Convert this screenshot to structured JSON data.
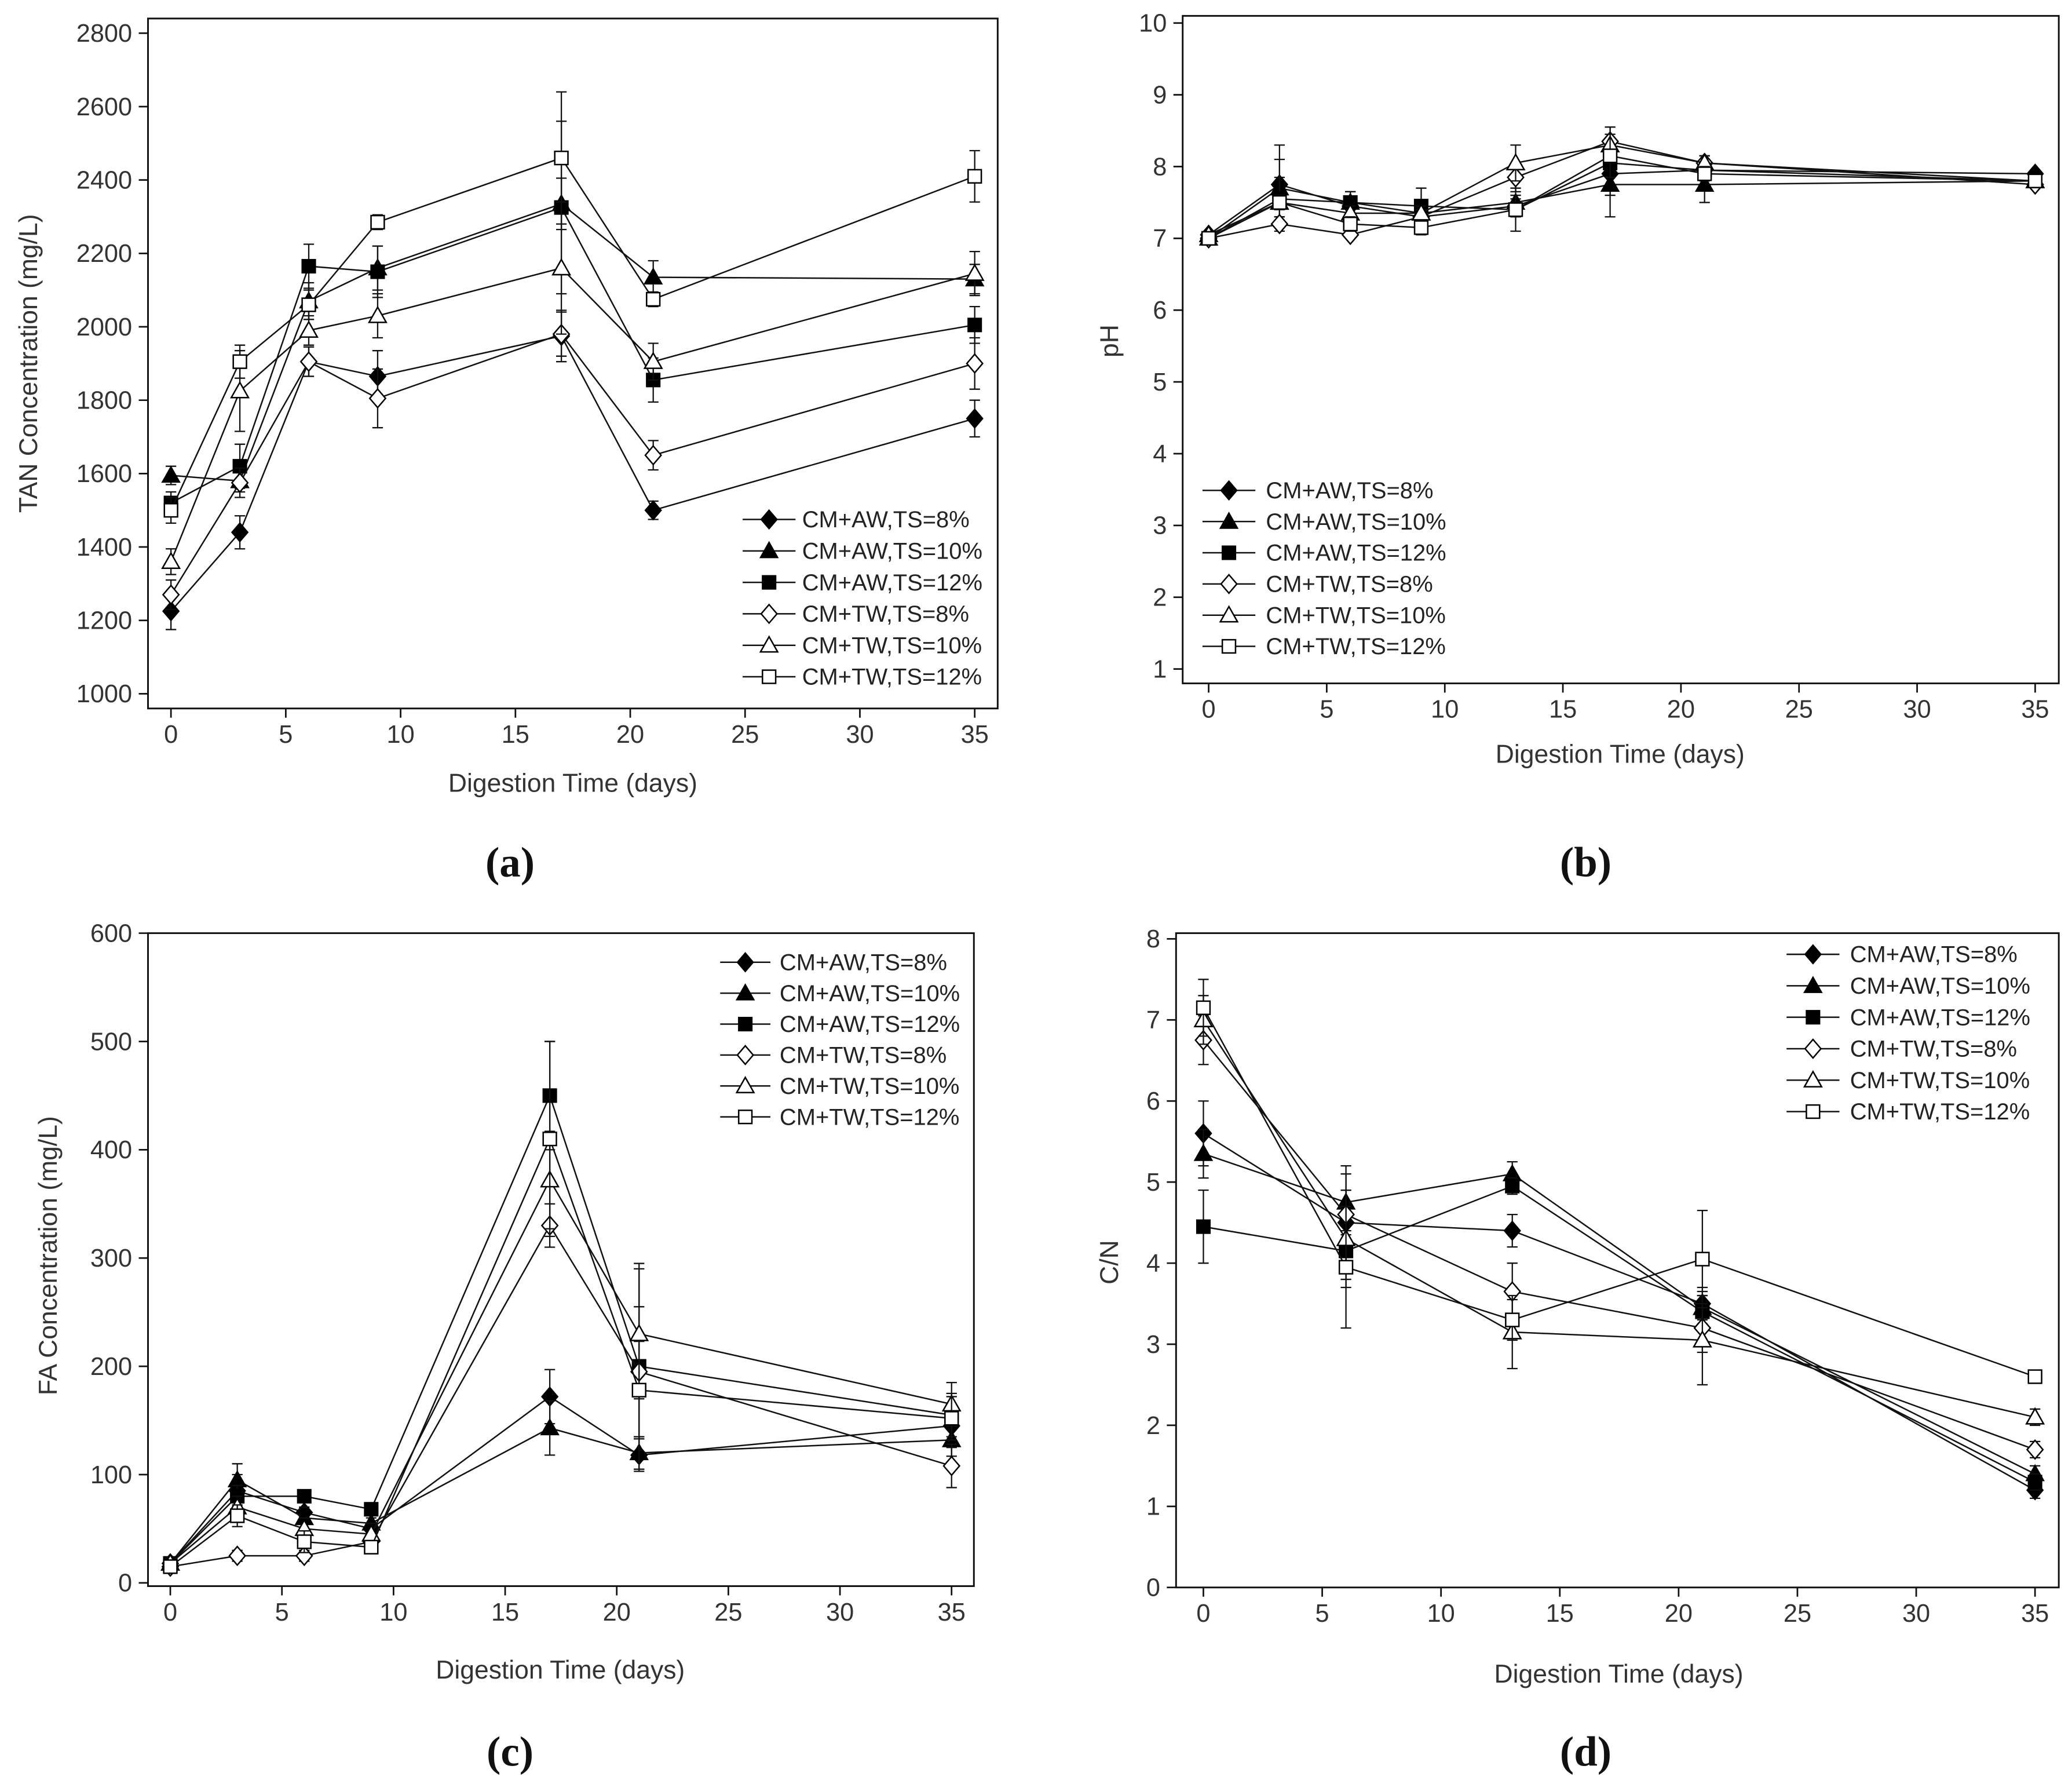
{
  "chart_data": [
    {
      "panel_label": "(a)",
      "type": "line",
      "xlabel": "Digestion Time (days)",
      "ylabel": "TAN Concentration (mg/L)",
      "xlim": [
        -1,
        36
      ],
      "ylim": [
        960,
        2840
      ],
      "xticks": [
        0,
        5,
        10,
        15,
        20,
        25,
        30,
        35
      ],
      "yticks": [
        1000,
        1200,
        1400,
        1600,
        1800,
        2000,
        2200,
        2400,
        2600,
        2800
      ],
      "legend_position": "bottom-right",
      "x": [
        0,
        3,
        6,
        9,
        17,
        21,
        35
      ],
      "series": [
        {
          "name": "CM+AW,TS=8%",
          "marker": "diamond",
          "filled": true,
          "values": [
            1225,
            1440,
            1905,
            1865,
            1975,
            1500,
            1750
          ],
          "errors": [
            50,
            45,
            40,
            70,
            70,
            25,
            50
          ]
        },
        {
          "name": "CM+AW,TS=10%",
          "marker": "triangle",
          "filled": true,
          "values": [
            1595,
            1580,
            2070,
            2160,
            2335,
            2135,
            2130
          ],
          "errors": [
            25,
            30,
            50,
            60,
            70,
            45,
            40
          ]
        },
        {
          "name": "CM+AW,TS=12%",
          "marker": "square",
          "filled": true,
          "values": [
            1520,
            1620,
            2165,
            2150,
            2325,
            1855,
            2005
          ],
          "errors": [
            30,
            60,
            60,
            70,
            235,
            60,
            50
          ]
        },
        {
          "name": "CM+TW,TS=8%",
          "marker": "diamond",
          "filled": false,
          "values": [
            1270,
            1575,
            1905,
            1805,
            1980,
            1650,
            1900
          ],
          "errors": [
            40,
            40,
            40,
            80,
            60,
            40,
            70
          ]
        },
        {
          "name": "CM+TW,TS=10%",
          "marker": "triangle",
          "filled": false,
          "values": [
            1360,
            1825,
            1990,
            2030,
            2160,
            1905,
            2145
          ],
          "errors": [
            35,
            110,
            40,
            60,
            180,
            50,
            60
          ]
        },
        {
          "name": "CM+TW,TS=12%",
          "marker": "square",
          "filled": false,
          "values": [
            1500,
            1905,
            2060,
            2285,
            2460,
            2075,
            2410
          ],
          "errors": [
            35,
            45,
            40,
            20,
            180,
            20,
            70
          ]
        }
      ]
    },
    {
      "panel_label": "(b)",
      "type": "line",
      "xlabel": "Digestion Time (days)",
      "ylabel": "pH",
      "xlim": [
        -1.1,
        36
      ],
      "ylim": [
        0.8,
        10.1
      ],
      "xticks": [
        0,
        5,
        10,
        15,
        20,
        25,
        30,
        35
      ],
      "yticks": [
        1,
        2,
        3,
        4,
        5,
        6,
        7,
        8,
        9,
        10
      ],
      "legend_position": "bottom-left",
      "x": [
        0,
        3,
        6,
        9,
        13,
        17,
        21,
        35
      ],
      "series": [
        {
          "name": "CM+AW,TS=8%",
          "marker": "diamond",
          "filled": true,
          "values": [
            7.05,
            7.75,
            7.45,
            7.3,
            7.45,
            7.9,
            7.95,
            7.9
          ],
          "errors": [
            0.05,
            0.55,
            0.1,
            0.1,
            0.1,
            0.3,
            0.1,
            0.05
          ]
        },
        {
          "name": "CM+AW,TS=10%",
          "marker": "triangle",
          "filled": true,
          "values": [
            7.0,
            7.7,
            7.5,
            7.35,
            7.5,
            7.75,
            7.75,
            7.8
          ],
          "errors": [
            0.05,
            0.4,
            0.15,
            0.1,
            0.1,
            0.45,
            0.25,
            0.05
          ]
        },
        {
          "name": "CM+AW,TS=12%",
          "marker": "square",
          "filled": true,
          "values": [
            7.0,
            7.55,
            7.5,
            7.45,
            7.4,
            8.05,
            7.95,
            7.8
          ],
          "errors": [
            0.05,
            0.3,
            0.15,
            0.25,
            0.1,
            0.2,
            0.1,
            0.05
          ]
        },
        {
          "name": "CM+TW,TS=8%",
          "marker": "diamond",
          "filled": false,
          "values": [
            7.0,
            7.2,
            7.05,
            7.3,
            7.85,
            8.35,
            8.05,
            7.75
          ],
          "errors": [
            0.05,
            0.1,
            0.05,
            0.1,
            0.2,
            0.2,
            0.1,
            0.05
          ]
        },
        {
          "name": "CM+TW,TS=10%",
          "marker": "triangle",
          "filled": false,
          "values": [
            7.05,
            7.5,
            7.35,
            7.35,
            8.05,
            8.3,
            8.05,
            7.8
          ],
          "errors": [
            0.05,
            0.1,
            0.1,
            0.1,
            0.25,
            0.25,
            0.1,
            0.05
          ]
        },
        {
          "name": "CM+TW,TS=12%",
          "marker": "square",
          "filled": false,
          "values": [
            7.0,
            7.5,
            7.2,
            7.15,
            7.4,
            8.15,
            7.9,
            7.8
          ],
          "errors": [
            0.05,
            0.1,
            0.1,
            0.1,
            0.3,
            0.3,
            0.1,
            0.05
          ]
        }
      ]
    },
    {
      "panel_label": "(c)",
      "type": "line",
      "xlabel": "Digestion Time (days)",
      "ylabel": "FA Concentration (mg/L)",
      "xlim": [
        -1,
        36
      ],
      "ylim": [
        -3,
        600
      ],
      "xticks": [
        0,
        5,
        10,
        15,
        20,
        25,
        30,
        35
      ],
      "yticks": [
        0,
        100,
        200,
        300,
        400,
        500,
        600
      ],
      "legend_position": "top-right",
      "x": [
        0,
        3,
        6,
        9,
        17,
        21,
        35
      ],
      "series": [
        {
          "name": "CM+AW,TS=8%",
          "marker": "diamond",
          "filled": true,
          "values": [
            18,
            85,
            65,
            50,
            172,
            118,
            145
          ],
          "errors": [
            5,
            15,
            10,
            10,
            25,
            15,
            20
          ]
        },
        {
          "name": "CM+AW,TS=10%",
          "marker": "triangle",
          "filled": true,
          "values": [
            18,
            95,
            60,
            55,
            143,
            120,
            132
          ],
          "errors": [
            5,
            15,
            10,
            10,
            25,
            15,
            15
          ]
        },
        {
          "name": "CM+AW,TS=12%",
          "marker": "square",
          "filled": true,
          "values": [
            18,
            80,
            80,
            68,
            450,
            200,
            155
          ],
          "errors": [
            5,
            10,
            5,
            5,
            50,
            95,
            20
          ]
        },
        {
          "name": "CM+TW,TS=8%",
          "marker": "diamond",
          "filled": false,
          "values": [
            15,
            25,
            25,
            38,
            330,
            195,
            108
          ],
          "errors": [
            3,
            5,
            5,
            5,
            20,
            60,
            20
          ]
        },
        {
          "name": "CM+TW,TS=10%",
          "marker": "triangle",
          "filled": false,
          "values": [
            18,
            70,
            50,
            45,
            372,
            230,
            165
          ],
          "errors": [
            5,
            10,
            10,
            10,
            45,
            60,
            20
          ]
        },
        {
          "name": "CM+TW,TS=12%",
          "marker": "square",
          "filled": false,
          "values": [
            15,
            62,
            38,
            33,
            410,
            178,
            152
          ],
          "errors": [
            5,
            10,
            10,
            5,
            90,
            45,
            20
          ]
        }
      ]
    },
    {
      "panel_label": "(d)",
      "type": "line",
      "xlabel": "Digestion Time (days)",
      "ylabel": "C/N",
      "xlim": [
        -1.15,
        36
      ],
      "ylim": [
        0,
        8.07
      ],
      "xticks": [
        0,
        5,
        10,
        15,
        20,
        25,
        30,
        35
      ],
      "yticks": [
        0,
        1,
        2,
        3,
        4,
        5,
        6,
        7,
        8
      ],
      "legend_position": "top-right",
      "x": [
        0,
        6,
        13,
        21,
        35
      ],
      "series": [
        {
          "name": "CM+AW,TS=8%",
          "marker": "diamond",
          "filled": true,
          "values": [
            5.6,
            4.5,
            4.4,
            3.5,
            1.2
          ],
          "errors": [
            0.4,
            0.7,
            0.2,
            0.2,
            0.1
          ]
        },
        {
          "name": "CM+AW,TS=10%",
          "marker": "triangle",
          "filled": true,
          "values": [
            5.35,
            4.75,
            5.1,
            3.45,
            1.4
          ],
          "errors": [
            0.3,
            0.35,
            0.15,
            0.2,
            0.1
          ]
        },
        {
          "name": "CM+AW,TS=12%",
          "marker": "square",
          "filled": true,
          "values": [
            4.45,
            4.15,
            4.95,
            3.4,
            1.3
          ],
          "errors": [
            0.45,
            0.2,
            0.1,
            0.2,
            0.1
          ]
        },
        {
          "name": "CM+TW,TS=8%",
          "marker": "diamond",
          "filled": false,
          "values": [
            6.75,
            4.6,
            3.65,
            3.2,
            1.7
          ],
          "errors": [
            0.3,
            0.3,
            0.35,
            0.3,
            0.1
          ]
        },
        {
          "name": "CM+TW,TS=10%",
          "marker": "triangle",
          "filled": false,
          "values": [
            7.0,
            4.3,
            3.15,
            3.05,
            2.1
          ],
          "errors": [
            0.3,
            0.6,
            0.45,
            0.55,
            0.1
          ]
        },
        {
          "name": "CM+TW,TS=12%",
          "marker": "square",
          "filled": false,
          "values": [
            7.15,
            3.95,
            3.3,
            4.05,
            2.6
          ],
          "errors": [
            0.35,
            0.75,
            0.25,
            0.6,
            0.05
          ]
        }
      ]
    }
  ]
}
